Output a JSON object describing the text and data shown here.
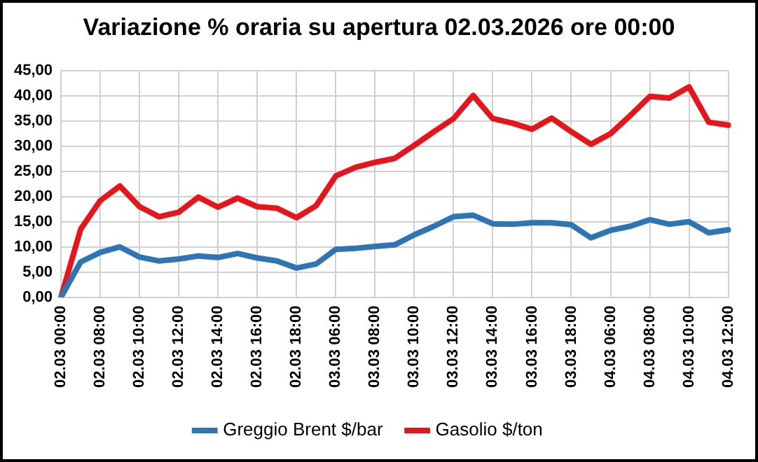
{
  "chart_data": {
    "type": "line",
    "title": "Variazione % oraria su apertura 02.03.2026 ore 00:00",
    "categories": [
      "02.03 00:00",
      null,
      "02.03 08:00",
      null,
      "02.03 10:00",
      null,
      "02.03 12:00",
      null,
      "02.03 14:00",
      null,
      "02.03 16:00",
      null,
      "02.03 18:00",
      null,
      "03.03 06:00",
      null,
      "03.03 08:00",
      null,
      "03.03 10:00",
      null,
      "03.03 12:00",
      null,
      "03.03 14:00",
      null,
      "03.03 16:00",
      null,
      "03.03 18:00",
      null,
      "04.03 06:00",
      null,
      "04.03 08:00",
      null,
      "04.03 10:00",
      null,
      "04.03 12:00"
    ],
    "series": [
      {
        "name": "Greggio Brent $/bar",
        "color": "#2e75b6",
        "values": [
          0,
          7.0,
          8.9,
          10.0,
          8.0,
          7.2,
          7.6,
          8.2,
          7.9,
          8.7,
          7.8,
          7.2,
          5.8,
          6.6,
          9.5,
          9.7,
          10.1,
          10.4,
          12.4,
          14.1,
          16.0,
          16.3,
          14.6,
          14.5,
          14.8,
          14.8,
          14.4,
          11.8,
          13.3,
          14.1,
          15.4,
          14.5,
          15.0,
          12.8,
          13.4
        ]
      },
      {
        "name": "Gasolio $/ton",
        "color": "#e8141a",
        "values": [
          0,
          13.5,
          19.2,
          22.1,
          18.0,
          16.0,
          16.9,
          19.9,
          17.9,
          19.7,
          18.0,
          17.7,
          15.8,
          18.2,
          24.1,
          25.8,
          26.8,
          27.6,
          30.2,
          32.9,
          35.5,
          40.1,
          35.5,
          34.6,
          33.4,
          35.6,
          32.9,
          30.4,
          32.5,
          36.1,
          39.9,
          39.6,
          41.8,
          34.8,
          34.2
        ]
      }
    ],
    "ylim": [
      0,
      45
    ],
    "yticks": [
      {
        "value": 0,
        "label": "0,00"
      },
      {
        "value": 5,
        "label": "5,00"
      },
      {
        "value": 10,
        "label": "10,00"
      },
      {
        "value": 15,
        "label": "15,00"
      },
      {
        "value": 20,
        "label": "20,00"
      },
      {
        "value": 25,
        "label": "25,00"
      },
      {
        "value": 30,
        "label": "30,00"
      },
      {
        "value": 35,
        "label": "35,00"
      },
      {
        "value": 40,
        "label": "40,00"
      },
      {
        "value": 45,
        "label": "45,00"
      }
    ],
    "grid": true,
    "legend": "bottom",
    "marker": "none",
    "line_style": "solid"
  }
}
